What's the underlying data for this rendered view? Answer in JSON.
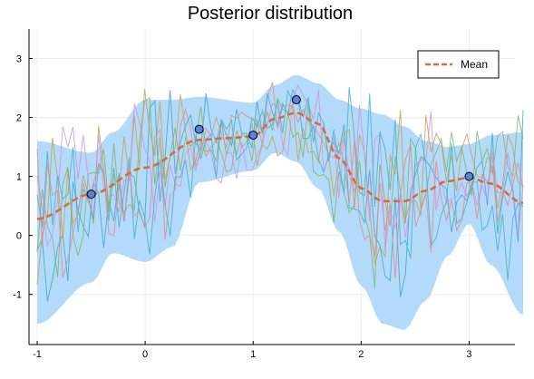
{
  "chart_data": {
    "type": "line",
    "title": "Posterior distribution",
    "xlabel": "",
    "ylabel": "",
    "xlim": [
      -1.0,
      3.5
    ],
    "ylim": [
      -1.85,
      3.5
    ],
    "x_ticks": [
      -1,
      0,
      1,
      2,
      3
    ],
    "y_ticks": [
      -1,
      0,
      1,
      2,
      3
    ],
    "grid": true,
    "legend_position": "top-right",
    "colors": {
      "band": "#b3dbf9",
      "mean": "#e0643c",
      "points": "#5f7fdc",
      "samples": [
        "#3da4cc",
        "#7fb06c",
        "#c0a050",
        "#d090e0",
        "#40b0c0",
        "#e08890"
      ]
    },
    "mean": {
      "name": "Mean",
      "x": [
        -1.0,
        -0.5,
        0.0,
        0.5,
        0.75,
        1.0,
        1.2,
        1.4,
        1.6,
        1.8,
        2.0,
        2.2,
        2.4,
        2.6,
        2.8,
        3.0,
        3.2,
        3.5
      ],
      "y": [
        0.28,
        0.7,
        1.15,
        1.62,
        1.65,
        1.68,
        1.98,
        2.08,
        1.9,
        1.3,
        0.8,
        0.58,
        0.58,
        0.76,
        0.92,
        0.98,
        0.88,
        0.55
      ]
    },
    "band": {
      "x": [
        -1.0,
        -0.5,
        -0.3,
        0.0,
        0.25,
        0.5,
        1.0,
        1.2,
        1.4,
        1.6,
        1.8,
        2.0,
        2.2,
        2.4,
        2.6,
        2.8,
        3.0,
        3.2,
        3.5
      ],
      "upper": [
        1.6,
        1.4,
        1.75,
        2.3,
        2.3,
        2.35,
        2.25,
        2.55,
        2.72,
        2.58,
        2.3,
        2.15,
        2.05,
        1.85,
        1.6,
        1.5,
        1.55,
        1.7,
        1.75
      ],
      "lower": [
        -1.5,
        -0.8,
        -0.3,
        -0.45,
        -0.2,
        0.9,
        1.1,
        1.4,
        1.25,
        0.8,
        0.05,
        -0.85,
        -1.5,
        -1.6,
        -1.1,
        -0.35,
        0.2,
        -0.5,
        -1.35
      ]
    },
    "observations": {
      "x": [
        -0.5,
        0.5,
        1.0,
        1.4,
        3.0
      ],
      "y": [
        0.7,
        1.8,
        1.7,
        2.3,
        1.0
      ]
    },
    "samples_count": 6
  }
}
